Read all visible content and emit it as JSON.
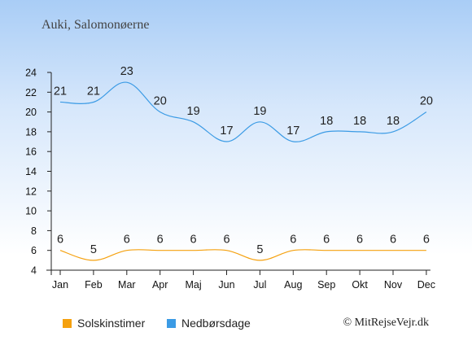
{
  "title": "Auki, Salomonøerne",
  "credit": "© MitRejseVejr.dk",
  "chart_data": {
    "type": "line",
    "categories": [
      "Jan",
      "Feb",
      "Mar",
      "Apr",
      "Maj",
      "Jun",
      "Jul",
      "Aug",
      "Sep",
      "Okt",
      "Nov",
      "Dec"
    ],
    "ylim": [
      4,
      24
    ],
    "yticks": [
      "4",
      "6",
      "8",
      "10",
      "12",
      "14",
      "16",
      "18",
      "20",
      "22",
      "24"
    ],
    "series": [
      {
        "name": "Solskinstimer",
        "color": "#f5a10f",
        "values": [
          6,
          5,
          6,
          6,
          6,
          6,
          5,
          6,
          6,
          6,
          6,
          6
        ]
      },
      {
        "name": "Nedbørsdage",
        "color": "#3b9be5",
        "values": [
          21,
          21,
          23,
          20,
          19,
          17,
          19,
          17,
          18,
          18,
          18,
          20
        ]
      }
    ],
    "legend_position": "bottom-left"
  }
}
